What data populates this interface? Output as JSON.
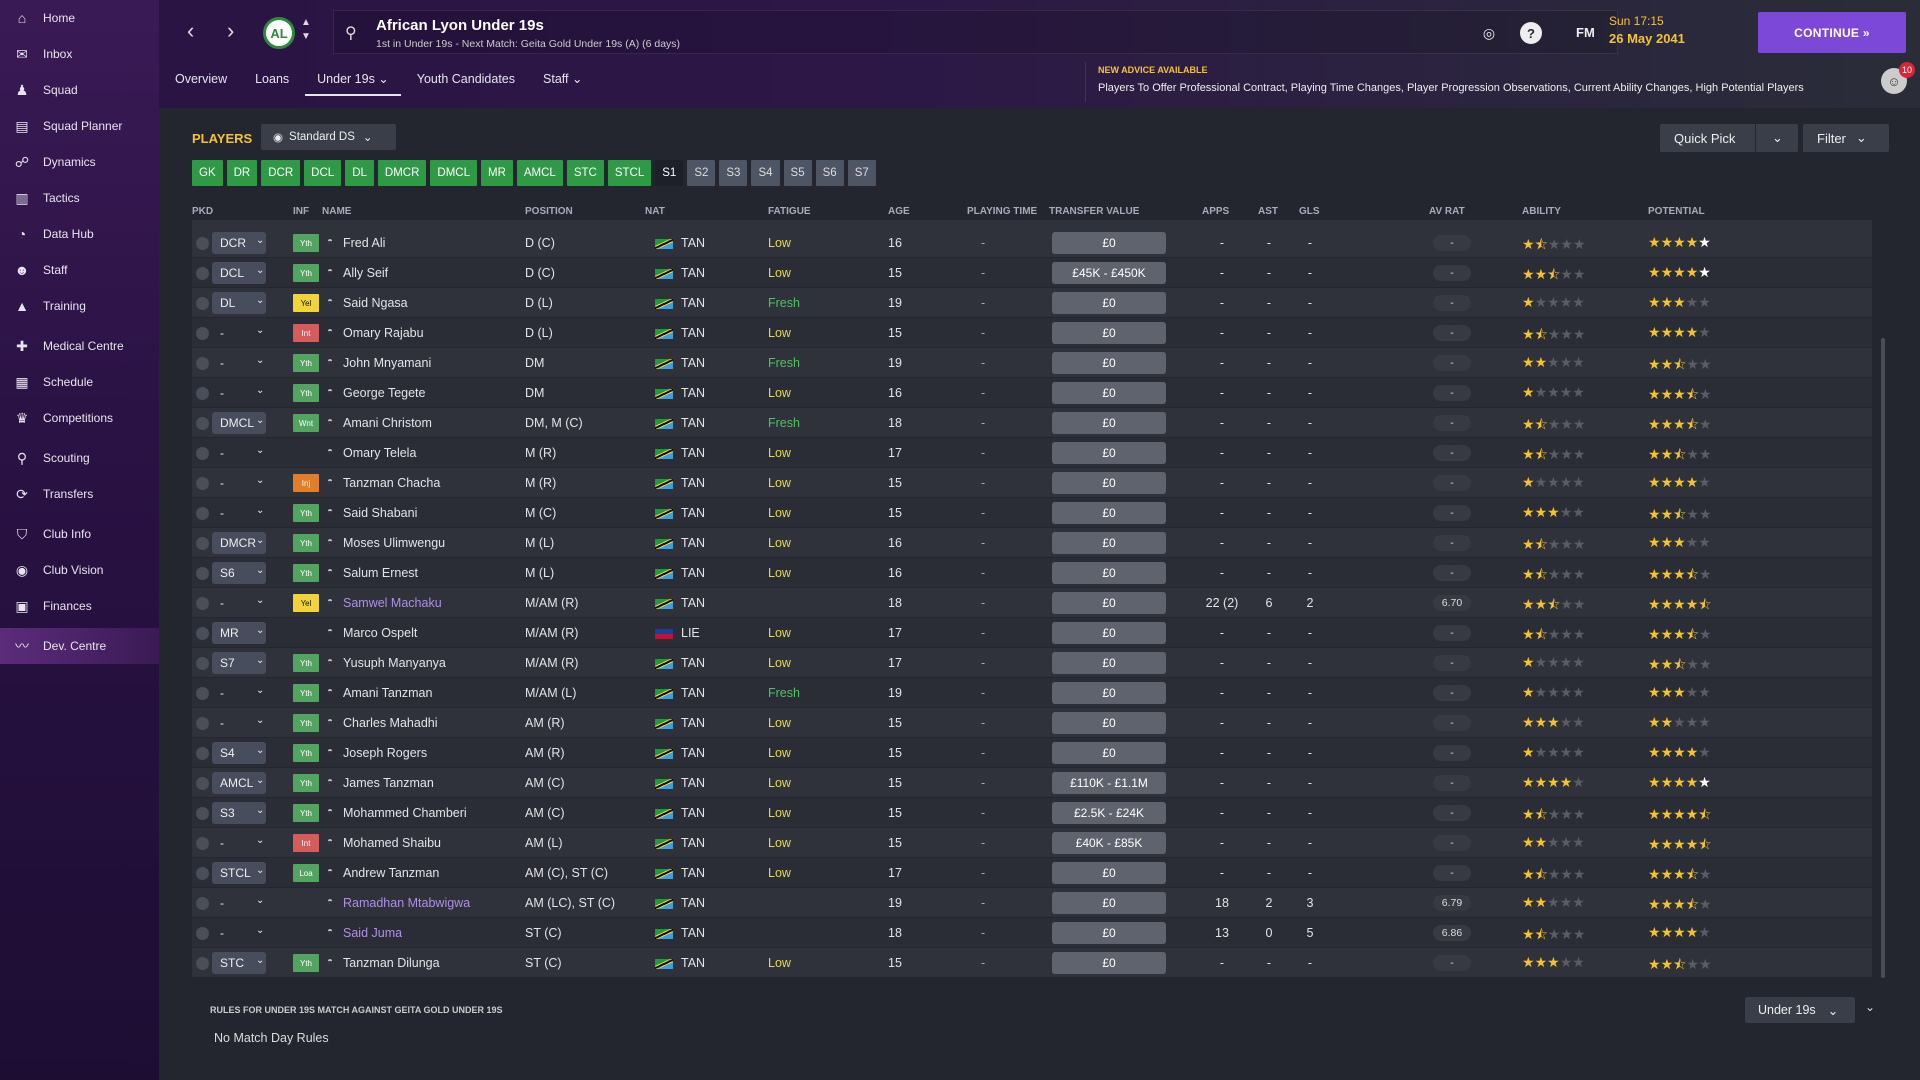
{
  "sidebar": {
    "items": [
      {
        "label": "Home",
        "icon": "home-icon",
        "glyph": "⌂"
      },
      {
        "label": "Inbox",
        "icon": "inbox-icon",
        "glyph": "✉"
      },
      {
        "label": "Squad",
        "icon": "squad-icon",
        "glyph": "♟"
      },
      {
        "label": "Squad Planner",
        "icon": "planner-icon",
        "glyph": "▤"
      },
      {
        "label": "Dynamics",
        "icon": "dynamics-icon",
        "glyph": "☍"
      },
      {
        "label": "Tactics",
        "icon": "tactics-icon",
        "glyph": "▥"
      },
      {
        "label": "Data Hub",
        "icon": "datahub-icon",
        "glyph": "◔"
      },
      {
        "label": "Staff",
        "icon": "staff-icon",
        "glyph": "☻"
      },
      {
        "label": "Training",
        "icon": "training-icon",
        "glyph": "▲"
      },
      {
        "label": "Medical Centre",
        "icon": "medical-icon",
        "glyph": "✚"
      },
      {
        "label": "Schedule",
        "icon": "schedule-icon",
        "glyph": "▦"
      },
      {
        "label": "Competitions",
        "icon": "trophy-icon",
        "glyph": "♛"
      },
      {
        "label": "Scouting",
        "icon": "scouting-icon",
        "glyph": "⚲"
      },
      {
        "label": "Transfers",
        "icon": "transfers-icon",
        "glyph": "⟳"
      },
      {
        "label": "Club Info",
        "icon": "club-info-icon",
        "glyph": "⛉"
      },
      {
        "label": "Club Vision",
        "icon": "club-vision-icon",
        "glyph": "◉"
      },
      {
        "label": "Finances",
        "icon": "finances-icon",
        "glyph": "▣"
      },
      {
        "label": "Dev. Centre",
        "icon": "dev-centre-icon",
        "glyph": "〰"
      }
    ]
  },
  "header": {
    "title": "African Lyon Under 19s",
    "subtitle": "1st in Under 19s - Next Match: Geita Gold Under 19s (A) (6 days)",
    "badge": "AL",
    "fm": "FM",
    "day_time": "Sun 17:15",
    "date": "26 May 2041",
    "continue_label": "CONTINUE »",
    "advice_title": "NEW ADVICE AVAILABLE",
    "advice_text": "Players To Offer Professional Contract, Playing Time Changes, Player Progression Observations, Current Ability Changes, High Potential Players",
    "notif_count": "10"
  },
  "tabs": [
    {
      "label": "Overview"
    },
    {
      "label": "Loans"
    },
    {
      "label": "Under 19s ⌄"
    },
    {
      "label": "Youth Candidates"
    },
    {
      "label": "Staff ⌄"
    }
  ],
  "players": {
    "label": "PLAYERS",
    "view": "Standard DS",
    "quick_pick": "Quick Pick",
    "filter": "Filter"
  },
  "position_tabs": [
    {
      "label": "GK",
      "t": "g"
    },
    {
      "label": "DR",
      "t": "g"
    },
    {
      "label": "DCR",
      "t": "g"
    },
    {
      "label": "DCL",
      "t": "g"
    },
    {
      "label": "DL",
      "t": "g"
    },
    {
      "label": "DMCR",
      "t": "g"
    },
    {
      "label": "DMCL",
      "t": "g"
    },
    {
      "label": "MR",
      "t": "g"
    },
    {
      "label": "AMCL",
      "t": "g"
    },
    {
      "label": "STC",
      "t": "g"
    },
    {
      "label": "STCL",
      "t": "g"
    },
    {
      "label": "S1",
      "t": "sel"
    },
    {
      "label": "S2",
      "t": "s"
    },
    {
      "label": "S3",
      "t": "s"
    },
    {
      "label": "S4",
      "t": "s"
    },
    {
      "label": "S5",
      "t": "s"
    },
    {
      "label": "S6",
      "t": "s"
    },
    {
      "label": "S7",
      "t": "s"
    }
  ],
  "columns": [
    "PKD",
    "INF",
    "NAME",
    "POSITION",
    "NAT",
    "FATIGUE",
    "AGE",
    "PLAYING TIME",
    "TRANSFER VALUE",
    "APPS",
    "AST",
    "GLS",
    "AV RAT",
    "ABILITY",
    "POTENTIAL"
  ],
  "rows": [
    {
      "role": "DCR",
      "inf": "Yth",
      "name": "Fred Ali",
      "pos": "D (C)",
      "nat": "TAN",
      "fat": "Low",
      "age": "16",
      "pt": "-",
      "tv": "£0",
      "apps": "-",
      "ast": "-",
      "gls": "-",
      "avr": "-",
      "ab": 1.5,
      "po": 5
    },
    {
      "role": "DCL",
      "inf": "Yth",
      "name": "Ally Seif",
      "pos": "D (C)",
      "nat": "TAN",
      "fat": "Low",
      "age": "15",
      "pt": "-",
      "tv": "£45K - £450K",
      "apps": "-",
      "ast": "-",
      "gls": "-",
      "avr": "-",
      "ab": 2.5,
      "po": 5
    },
    {
      "role": "DL",
      "inf": "Yel",
      "name": "Said Ngasa",
      "pos": "D (L)",
      "nat": "TAN",
      "fat": "Fresh",
      "age": "19",
      "pt": "-",
      "tv": "£0",
      "apps": "-",
      "ast": "-",
      "gls": "-",
      "avr": "-",
      "ab": 1,
      "po": 3
    },
    {
      "role": "-",
      "inf": "Int",
      "name": "Omary Rajabu",
      "pos": "D (L)",
      "nat": "TAN",
      "fat": "Low",
      "age": "15",
      "pt": "-",
      "tv": "£0",
      "apps": "-",
      "ast": "-",
      "gls": "-",
      "avr": "-",
      "ab": 1.5,
      "po": 4
    },
    {
      "role": "-",
      "inf": "Yth",
      "name": "John Mnyamani",
      "pos": "DM",
      "nat": "TAN",
      "fat": "Fresh",
      "age": "19",
      "pt": "-",
      "tv": "£0",
      "apps": "-",
      "ast": "-",
      "gls": "-",
      "avr": "-",
      "ab": 2,
      "po": 2.5
    },
    {
      "role": "-",
      "inf": "Yth",
      "name": "George Tegete",
      "pos": "DM",
      "nat": "TAN",
      "fat": "Low",
      "age": "16",
      "pt": "-",
      "tv": "£0",
      "apps": "-",
      "ast": "-",
      "gls": "-",
      "avr": "-",
      "ab": 1,
      "po": 3.5
    },
    {
      "role": "DMCL",
      "inf": "Wnt",
      "name": "Amani Christom",
      "pos": "DM, M (C)",
      "nat": "TAN",
      "fat": "Fresh",
      "age": "18",
      "pt": "-",
      "tv": "£0",
      "apps": "-",
      "ast": "-",
      "gls": "-",
      "avr": "-",
      "ab": 1.5,
      "po": 3.5
    },
    {
      "role": "-",
      "inf": "",
      "name": "Omary Telela",
      "pos": "M (R)",
      "nat": "TAN",
      "fat": "Low",
      "age": "17",
      "pt": "-",
      "tv": "£0",
      "apps": "-",
      "ast": "-",
      "gls": "-",
      "avr": "-",
      "ab": 1.5,
      "po": 2.5
    },
    {
      "role": "-",
      "inf": "Inj",
      "name": "Tanzman Chacha",
      "pos": "M (R)",
      "nat": "TAN",
      "fat": "Low",
      "age": "15",
      "pt": "-",
      "tv": "£0",
      "apps": "-",
      "ast": "-",
      "gls": "-",
      "avr": "-",
      "ab": 1,
      "po": 4
    },
    {
      "role": "-",
      "inf": "Yth",
      "name": "Said Shabani",
      "pos": "M (C)",
      "nat": "TAN",
      "fat": "Low",
      "age": "15",
      "pt": "-",
      "tv": "£0",
      "apps": "-",
      "ast": "-",
      "gls": "-",
      "avr": "-",
      "ab": 3,
      "po": 2.5
    },
    {
      "role": "DMCR",
      "inf": "Yth",
      "name": "Moses Ulimwengu",
      "pos": "M (L)",
      "nat": "TAN",
      "fat": "Low",
      "age": "16",
      "pt": "-",
      "tv": "£0",
      "apps": "-",
      "ast": "-",
      "gls": "-",
      "avr": "-",
      "ab": 1.5,
      "po": 3
    },
    {
      "role": "S6",
      "inf": "Yth",
      "name": "Salum Ernest",
      "pos": "M (L)",
      "nat": "TAN",
      "fat": "Low",
      "age": "16",
      "pt": "-",
      "tv": "£0",
      "apps": "-",
      "ast": "-",
      "gls": "-",
      "avr": "-",
      "ab": 1.5,
      "po": 3.5
    },
    {
      "role": "-",
      "inf": "Yel",
      "name": "Samwel Machaku",
      "pos": "M/AM (R)",
      "nat": "TAN",
      "fat": "",
      "age": "18",
      "pt": "-",
      "tv": "£0",
      "apps": "22 (2)",
      "ast": "6",
      "gls": "2",
      "avr": "6.70",
      "ab": 2.5,
      "po": 4.5,
      "purple": true
    },
    {
      "role": "MR",
      "inf": "",
      "name": "Marco Ospelt",
      "pos": "M/AM (R)",
      "nat": "LIE",
      "fat": "Low",
      "age": "17",
      "pt": "-",
      "tv": "£0",
      "apps": "-",
      "ast": "-",
      "gls": "-",
      "avr": "-",
      "ab": 1.5,
      "po": 3.5
    },
    {
      "role": "S7",
      "inf": "Yth",
      "name": "Yusuph Manyanya",
      "pos": "M/AM (R)",
      "nat": "TAN",
      "fat": "Low",
      "age": "17",
      "pt": "-",
      "tv": "£0",
      "apps": "-",
      "ast": "-",
      "gls": "-",
      "avr": "-",
      "ab": 1,
      "po": 2.5
    },
    {
      "role": "-",
      "inf": "Yth",
      "name": "Amani Tanzman",
      "pos": "M/AM (L)",
      "nat": "TAN",
      "fat": "Fresh",
      "age": "19",
      "pt": "-",
      "tv": "£0",
      "apps": "-",
      "ast": "-",
      "gls": "-",
      "avr": "-",
      "ab": 1,
      "po": 3
    },
    {
      "role": "-",
      "inf": "Yth",
      "name": "Charles Mahadhi",
      "pos": "AM (R)",
      "nat": "TAN",
      "fat": "Low",
      "age": "15",
      "pt": "-",
      "tv": "£0",
      "apps": "-",
      "ast": "-",
      "gls": "-",
      "avr": "-",
      "ab": 3,
      "po": 2
    },
    {
      "role": "S4",
      "inf": "Yth",
      "name": "Joseph Rogers",
      "pos": "AM (R)",
      "nat": "TAN",
      "fat": "Low",
      "age": "15",
      "pt": "-",
      "tv": "£0",
      "apps": "-",
      "ast": "-",
      "gls": "-",
      "avr": "-",
      "ab": 1,
      "po": 4
    },
    {
      "role": "AMCL",
      "inf": "Yth",
      "name": "James Tanzman",
      "pos": "AM (C)",
      "nat": "TAN",
      "fat": "Low",
      "age": "15",
      "pt": "-",
      "tv": "£110K - £1.1M",
      "apps": "-",
      "ast": "-",
      "gls": "-",
      "avr": "-",
      "ab": 4,
      "po": 5
    },
    {
      "role": "S3",
      "inf": "Yth",
      "name": "Mohammed Chamberi",
      "pos": "AM (C)",
      "nat": "TAN",
      "fat": "Low",
      "age": "15",
      "pt": "-",
      "tv": "£2.5K - £24K",
      "apps": "-",
      "ast": "-",
      "gls": "-",
      "avr": "-",
      "ab": 1.5,
      "po": 4.5
    },
    {
      "role": "-",
      "inf": "Int",
      "name": "Mohamed Shaibu",
      "pos": "AM (L)",
      "nat": "TAN",
      "fat": "Low",
      "age": "15",
      "pt": "-",
      "tv": "£40K - £85K",
      "apps": "-",
      "ast": "-",
      "gls": "-",
      "avr": "-",
      "ab": 2,
      "po": 4.5
    },
    {
      "role": "STCL",
      "inf": "Loa",
      "name": "Andrew Tanzman",
      "pos": "AM (C), ST (C)",
      "nat": "TAN",
      "fat": "Low",
      "age": "17",
      "pt": "-",
      "tv": "£0",
      "apps": "-",
      "ast": "-",
      "gls": "-",
      "avr": "-",
      "ab": 1.5,
      "po": 3.5
    },
    {
      "role": "-",
      "inf": "",
      "name": "Ramadhan Mtabwigwa",
      "pos": "AM (LC), ST (C)",
      "nat": "TAN",
      "fat": "",
      "age": "19",
      "pt": "-",
      "tv": "£0",
      "apps": "18",
      "ast": "2",
      "gls": "3",
      "avr": "6.79",
      "ab": 2,
      "po": 3.5,
      "purple": true
    },
    {
      "role": "-",
      "inf": "",
      "name": "Said Juma",
      "pos": "ST (C)",
      "nat": "TAN",
      "fat": "",
      "age": "18",
      "pt": "-",
      "tv": "£0",
      "apps": "13",
      "ast": "0",
      "gls": "5",
      "avr": "6.86",
      "ab": 1.5,
      "po": 4,
      "purple": true
    },
    {
      "role": "STC",
      "inf": "Yth",
      "name": "Tanzman Dilunga",
      "pos": "ST (C)",
      "nat": "TAN",
      "fat": "Low",
      "age": "15",
      "pt": "-",
      "tv": "£0",
      "apps": "-",
      "ast": "-",
      "gls": "-",
      "avr": "-",
      "ab": 3,
      "po": 2.5
    }
  ],
  "rules": {
    "title": "RULES FOR UNDER 19S MATCH AGAINST GEITA GOLD UNDER 19S",
    "text": "No Match Day Rules",
    "select": "Under 19s"
  }
}
